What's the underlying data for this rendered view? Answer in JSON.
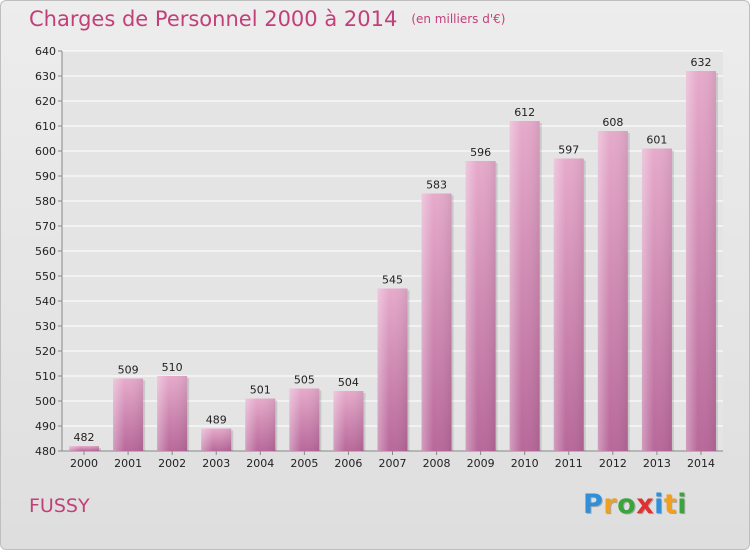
{
  "title": "Charges de Personnel 2000 à 2014",
  "subtitle": "(en milliers d'€)",
  "commune": "FUSSY",
  "logo": {
    "letters": [
      "P",
      "r",
      "o",
      "x",
      "i",
      "t",
      "i"
    ],
    "colors": [
      "#2f8fd8",
      "#f0a020",
      "#3aa53a",
      "#e03030",
      "#2f8fd8",
      "#f0a020",
      "#3aa53a"
    ]
  },
  "colors": {
    "bar": "#c9679c",
    "bar_light": "#e2a8c8",
    "accent": "#c2407a"
  },
  "chart_data": {
    "type": "bar",
    "title": "Charges de Personnel 2000 à 2014",
    "subtitle": "(en milliers d'€)",
    "xlabel": "",
    "ylabel": "",
    "categories": [
      "2000",
      "2001",
      "2002",
      "2003",
      "2004",
      "2005",
      "2006",
      "2007",
      "2008",
      "2009",
      "2010",
      "2011",
      "2012",
      "2013",
      "2014"
    ],
    "values": [
      482,
      509,
      510,
      489,
      501,
      505,
      504,
      545,
      583,
      596,
      612,
      597,
      608,
      601,
      632
    ],
    "ylim": [
      480,
      640
    ],
    "yticks": [
      480,
      490,
      500,
      510,
      520,
      530,
      540,
      550,
      560,
      570,
      580,
      590,
      600,
      610,
      620,
      630,
      640
    ],
    "grid": true,
    "legend": "none"
  }
}
